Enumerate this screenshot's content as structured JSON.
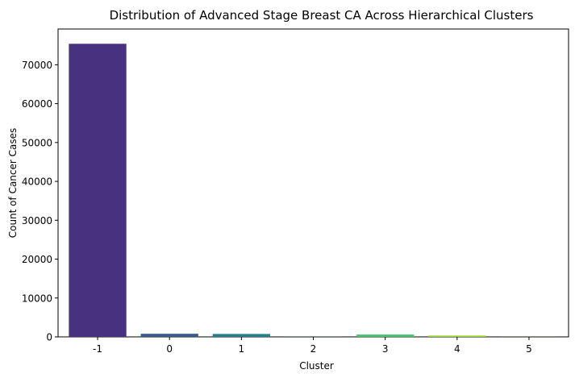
{
  "chart_data": {
    "type": "bar",
    "title": "Distribution of Advanced Stage Breast CA Across Hierarchical Clusters",
    "xlabel": "Cluster",
    "ylabel": "Count of Cancer Cases",
    "categories": [
      "-1",
      "0",
      "1",
      "2",
      "3",
      "4",
      "5"
    ],
    "values": [
      75400,
      800,
      750,
      20,
      600,
      350,
      10
    ],
    "colors": [
      "#46327e",
      "#365c8d",
      "#277f8e",
      "#1fa187",
      "#4ac16d",
      "#a0da39",
      "#fde725"
    ],
    "ylim": [
      0,
      79200
    ],
    "yticks": [
      0,
      10000,
      20000,
      30000,
      40000,
      50000,
      60000,
      70000
    ],
    "grid": false,
    "legend": "none"
  }
}
